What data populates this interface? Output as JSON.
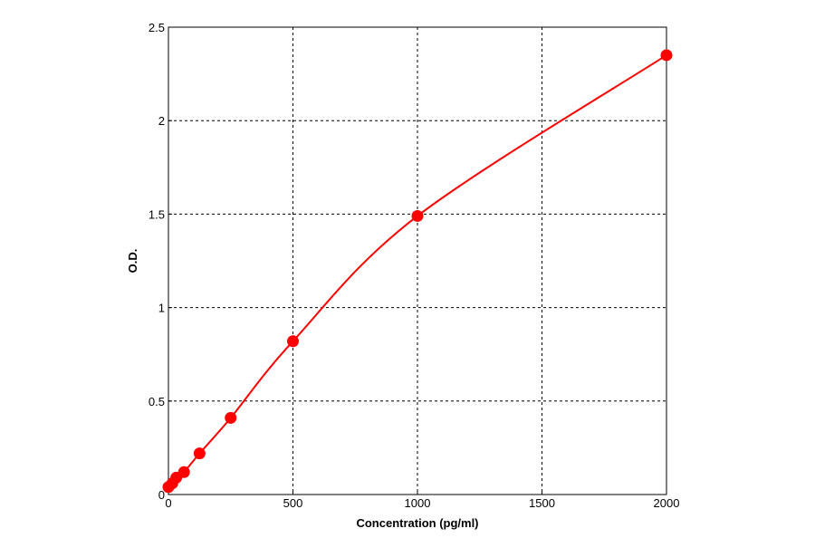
{
  "chart_data": {
    "type": "line",
    "title": "",
    "xlabel": "Concentration (pg/ml)",
    "ylabel": "O.D.",
    "xlim": [
      0,
      2000
    ],
    "ylim": [
      0,
      2.5
    ],
    "x_ticks": [
      0,
      500,
      1000,
      1500,
      2000
    ],
    "y_ticks": [
      0,
      0.5,
      1,
      1.5,
      2,
      2.5
    ],
    "x_tick_labels": [
      "0",
      "500",
      "1000",
      "1500",
      "2000"
    ],
    "y_tick_labels": [
      "0",
      "0.5",
      "1",
      "1.5",
      "2",
      "2.5"
    ],
    "grid": true,
    "color": "#ff0000",
    "series": [
      {
        "x": [
          0,
          15.6,
          31.25,
          62.5,
          125,
          250,
          500,
          1000,
          2000
        ],
        "y": [
          0.04,
          0.06,
          0.09,
          0.12,
          0.22,
          0.41,
          0.82,
          1.49,
          2.35
        ]
      }
    ]
  }
}
